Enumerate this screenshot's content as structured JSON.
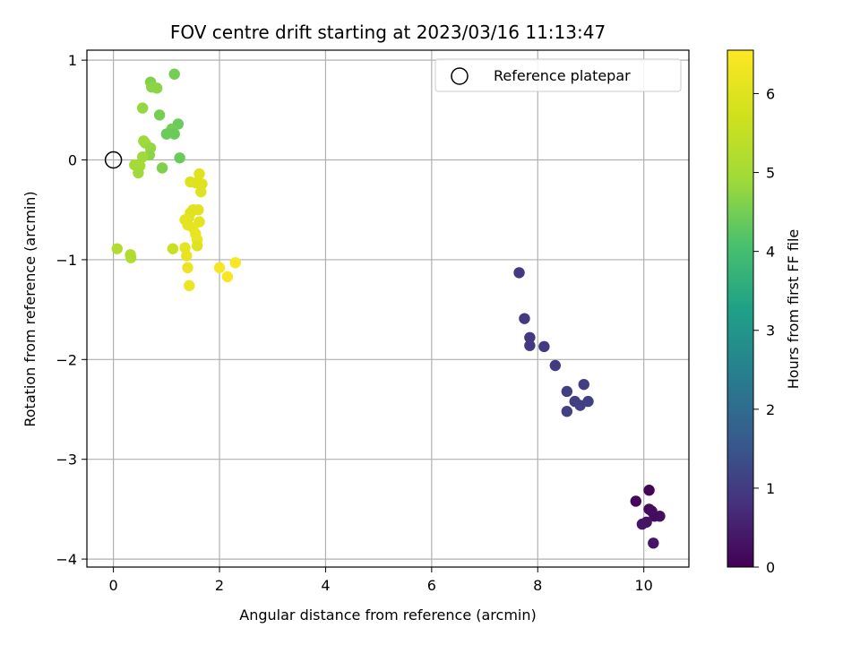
{
  "chart_data": {
    "type": "scatter",
    "title": "FOV centre drift starting at 2023/03/16 11:13:47",
    "xlabel": "Angular distance from reference (arcmin)",
    "ylabel": "Rotation from reference (arcmin)",
    "xlim": [
      -0.5,
      10.85
    ],
    "ylim": [
      -4.08,
      1.1
    ],
    "xticks": [
      0,
      2,
      4,
      6,
      8,
      10
    ],
    "yticks": [
      1,
      0,
      -1,
      -2,
      -3,
      -4
    ],
    "ytick_labels": [
      "1",
      "0",
      "−1",
      "−2",
      "−3",
      "−4"
    ],
    "grid": true,
    "legend": {
      "label": "Reference platepar",
      "placement": "top-right"
    },
    "reference_point": {
      "x": 0,
      "y": 0
    },
    "colorbar": {
      "label": "Hours from first FF file",
      "min": 0,
      "max": 6.55,
      "ticks": [
        0,
        1,
        2,
        3,
        4,
        5,
        6
      ],
      "colormap": "viridis"
    },
    "points": [
      {
        "x": 10.1,
        "y": -3.31,
        "c": 0.05
      },
      {
        "x": 9.85,
        "y": -3.42,
        "c": 0.1
      },
      {
        "x": 10.1,
        "y": -3.5,
        "c": 0.15
      },
      {
        "x": 10.15,
        "y": -3.52,
        "c": 0.2
      },
      {
        "x": 10.3,
        "y": -3.57,
        "c": 0.25
      },
      {
        "x": 10.2,
        "y": -3.57,
        "c": 0.2
      },
      {
        "x": 10.05,
        "y": -3.63,
        "c": 0.3
      },
      {
        "x": 9.97,
        "y": -3.65,
        "c": 0.35
      },
      {
        "x": 10.18,
        "y": -3.84,
        "c": 0.35
      },
      {
        "x": 7.65,
        "y": -1.13,
        "c": 0.95
      },
      {
        "x": 7.75,
        "y": -1.59,
        "c": 0.95
      },
      {
        "x": 7.85,
        "y": -1.78,
        "c": 0.95
      },
      {
        "x": 7.85,
        "y": -1.86,
        "c": 1.0
      },
      {
        "x": 8.12,
        "y": -1.87,
        "c": 1.0
      },
      {
        "x": 8.33,
        "y": -2.06,
        "c": 1.0
      },
      {
        "x": 8.87,
        "y": -2.25,
        "c": 1.05
      },
      {
        "x": 8.55,
        "y": -2.32,
        "c": 1.05
      },
      {
        "x": 8.7,
        "y": -2.42,
        "c": 1.05
      },
      {
        "x": 8.95,
        "y": -2.42,
        "c": 1.1
      },
      {
        "x": 8.8,
        "y": -2.46,
        "c": 1.1
      },
      {
        "x": 8.55,
        "y": -2.52,
        "c": 1.1
      },
      {
        "x": 1.15,
        "y": 0.86,
        "c": 4.5
      },
      {
        "x": 0.7,
        "y": 0.78,
        "c": 4.6
      },
      {
        "x": 0.72,
        "y": 0.73,
        "c": 4.7
      },
      {
        "x": 0.82,
        "y": 0.72,
        "c": 4.7
      },
      {
        "x": 0.55,
        "y": 0.52,
        "c": 4.8
      },
      {
        "x": 0.87,
        "y": 0.45,
        "c": 4.5
      },
      {
        "x": 1.22,
        "y": 0.36,
        "c": 4.4
      },
      {
        "x": 1.1,
        "y": 0.31,
        "c": 4.5
      },
      {
        "x": 1.15,
        "y": 0.26,
        "c": 4.4
      },
      {
        "x": 1.0,
        "y": 0.26,
        "c": 4.4
      },
      {
        "x": 0.57,
        "y": 0.19,
        "c": 4.9
      },
      {
        "x": 0.6,
        "y": 0.17,
        "c": 4.9
      },
      {
        "x": 0.7,
        "y": 0.12,
        "c": 4.8
      },
      {
        "x": 0.68,
        "y": 0.05,
        "c": 4.7
      },
      {
        "x": 1.25,
        "y": 0.02,
        "c": 4.4
      },
      {
        "x": 0.55,
        "y": 0.03,
        "c": 4.9
      },
      {
        "x": 0.4,
        "y": -0.05,
        "c": 5.0
      },
      {
        "x": 0.5,
        "y": -0.06,
        "c": 5.0
      },
      {
        "x": 0.92,
        "y": -0.08,
        "c": 4.6
      },
      {
        "x": 0.47,
        "y": -0.13,
        "c": 4.9
      },
      {
        "x": 0.07,
        "y": -0.89,
        "c": 5.2
      },
      {
        "x": 0.32,
        "y": -0.95,
        "c": 5.2
      },
      {
        "x": 0.33,
        "y": -0.98,
        "c": 5.2
      },
      {
        "x": 1.12,
        "y": -0.89,
        "c": 5.6
      },
      {
        "x": 1.62,
        "y": -0.14,
        "c": 6.0
      },
      {
        "x": 1.45,
        "y": -0.22,
        "c": 5.95
      },
      {
        "x": 1.55,
        "y": -0.23,
        "c": 6.0
      },
      {
        "x": 1.67,
        "y": -0.24,
        "c": 6.0
      },
      {
        "x": 1.65,
        "y": -0.32,
        "c": 6.0
      },
      {
        "x": 1.5,
        "y": -0.5,
        "c": 6.05
      },
      {
        "x": 1.6,
        "y": -0.5,
        "c": 6.05
      },
      {
        "x": 1.45,
        "y": -0.53,
        "c": 6.0
      },
      {
        "x": 1.42,
        "y": -0.58,
        "c": 6.05
      },
      {
        "x": 1.35,
        "y": -0.6,
        "c": 6.1
      },
      {
        "x": 1.62,
        "y": -0.62,
        "c": 6.1
      },
      {
        "x": 1.4,
        "y": -0.65,
        "c": 6.1
      },
      {
        "x": 1.5,
        "y": -0.68,
        "c": 6.1
      },
      {
        "x": 1.55,
        "y": -0.74,
        "c": 6.15
      },
      {
        "x": 1.58,
        "y": -0.8,
        "c": 6.2
      },
      {
        "x": 1.58,
        "y": -0.86,
        "c": 6.0
      },
      {
        "x": 1.35,
        "y": -0.88,
        "c": 6.1
      },
      {
        "x": 1.38,
        "y": -0.96,
        "c": 6.15
      },
      {
        "x": 1.4,
        "y": -1.08,
        "c": 6.2
      },
      {
        "x": 1.43,
        "y": -1.26,
        "c": 6.25
      },
      {
        "x": 2.0,
        "y": -1.08,
        "c": 6.45
      },
      {
        "x": 2.3,
        "y": -1.03,
        "c": 6.5
      },
      {
        "x": 2.15,
        "y": -1.17,
        "c": 6.45
      }
    ]
  }
}
